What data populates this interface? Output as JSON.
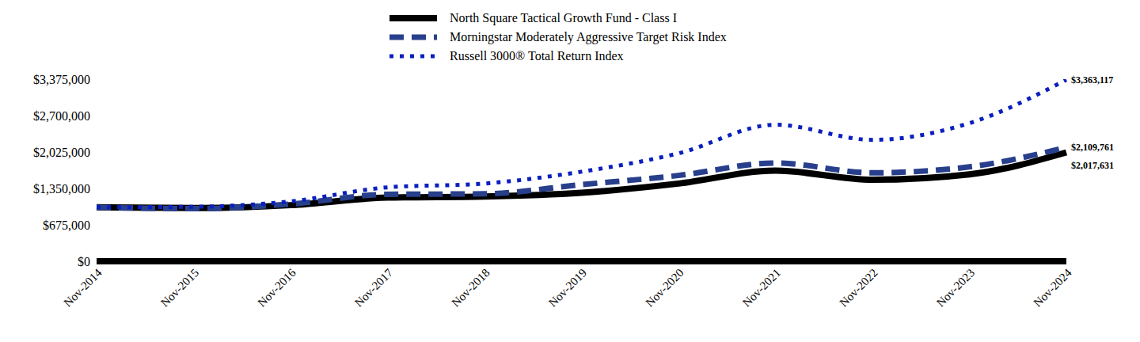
{
  "chart_data": {
    "type": "line",
    "categories": [
      "Nov-2014",
      "Nov-2015",
      "Nov-2016",
      "Nov-2017",
      "Nov-2018",
      "Nov-2019",
      "Nov-2020",
      "Nov-2021",
      "Nov-2022",
      "Nov-2023",
      "Nov-2024"
    ],
    "series": [
      {
        "name": "North Square Tactical Growth Fund - Class I",
        "color": "#000000",
        "line_style": "solid",
        "values": [
          1000000,
          985000,
          1040000,
          1180000,
          1200000,
          1270000,
          1440000,
          1680000,
          1510000,
          1610000,
          2017631
        ],
        "value_labels": [
          null,
          null,
          null,
          null,
          null,
          null,
          null,
          null,
          null,
          null,
          "$2,017,631"
        ]
      },
      {
        "name": "Morningstar Moderately Aggressive Target Risk Index",
        "color": "#283f8c",
        "line_style": "dashed",
        "values": [
          1000000,
          975000,
          1060000,
          1240000,
          1250000,
          1420000,
          1590000,
          1820000,
          1640000,
          1750000,
          2109761
        ],
        "value_labels": [
          null,
          null,
          null,
          null,
          null,
          null,
          null,
          null,
          null,
          null,
          "$2,109,761"
        ]
      },
      {
        "name": "Russell 3000® Total Return Index",
        "color": "#0a1fbf",
        "line_style": "dotted",
        "values": [
          1000000,
          1010000,
          1110000,
          1370000,
          1440000,
          1660000,
          2000000,
          2530000,
          2250000,
          2560000,
          3363117
        ],
        "value_labels": [
          null,
          null,
          null,
          null,
          null,
          null,
          null,
          null,
          null,
          null,
          "$3,363,117"
        ]
      }
    ],
    "ylim": [
      0,
      3375000
    ],
    "yticks": [
      {
        "value": 0,
        "label": "$0"
      },
      {
        "value": 675000,
        "label": "$675,000"
      },
      {
        "value": 1350000,
        "label": "$1,350,000"
      },
      {
        "value": 2025000,
        "label": "$2,025,000"
      },
      {
        "value": 2700000,
        "label": "$2,700,000"
      },
      {
        "value": 3375000,
        "label": "$3,375,000"
      }
    ],
    "legend": "top"
  }
}
